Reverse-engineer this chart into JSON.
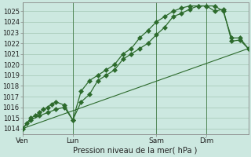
{
  "xlabel": "Pression niveau de la mer( hPa )",
  "bg_color": "#cce8e0",
  "grid_color": "#aaccbb",
  "line_color": "#2d6b2d",
  "ylim": [
    1013.5,
    1025.8
  ],
  "yticks": [
    1014,
    1015,
    1016,
    1017,
    1018,
    1019,
    1020,
    1021,
    1022,
    1023,
    1024,
    1025
  ],
  "xtick_labels": [
    "Ven",
    "Lun",
    "Sam",
    "Dim"
  ],
  "xtick_positions": [
    0,
    6,
    16,
    22
  ],
  "vline_positions": [
    0,
    6,
    16,
    22
  ],
  "xlim": [
    0,
    27
  ],
  "series1_x": [
    0,
    0.5,
    1,
    1.5,
    2,
    2.5,
    3,
    3.5,
    4,
    5,
    6,
    7,
    8,
    9,
    10,
    11,
    12,
    13,
    14,
    15,
    16,
    17,
    18,
    19,
    20,
    21,
    22,
    23,
    24,
    25,
    26,
    27
  ],
  "series1_y": [
    1014,
    1014.5,
    1015,
    1015.2,
    1015.5,
    1015.8,
    1016,
    1016.3,
    1016.5,
    1016.2,
    1014.8,
    1016.5,
    1017.2,
    1018.5,
    1019.0,
    1019.5,
    1020.5,
    1021.0,
    1021.5,
    1022.0,
    1022.8,
    1023.5,
    1024.5,
    1024.8,
    1025.2,
    1025.5,
    1025.5,
    1025.0,
    1025.2,
    1022.2,
    1022.3,
    1021.5
  ],
  "series2_x": [
    0,
    1,
    2,
    3,
    4,
    5,
    6,
    7,
    8,
    9,
    10,
    11,
    12,
    13,
    14,
    15,
    16,
    17,
    18,
    19,
    20,
    21,
    22,
    23,
    24,
    25,
    26,
    27
  ],
  "series2_y": [
    1014,
    1014.8,
    1015.2,
    1015.5,
    1015.8,
    1016.0,
    1014.8,
    1017.5,
    1018.5,
    1019.0,
    1019.5,
    1020.0,
    1021.0,
    1021.5,
    1022.5,
    1023.2,
    1024.0,
    1024.5,
    1025.0,
    1025.3,
    1025.5,
    1025.5,
    1025.5,
    1025.5,
    1025.0,
    1022.5,
    1022.5,
    1021.5
  ],
  "series3_x": [
    0,
    27
  ],
  "series3_y": [
    1014,
    1021.5
  ],
  "marker": "D",
  "markersize": 3
}
